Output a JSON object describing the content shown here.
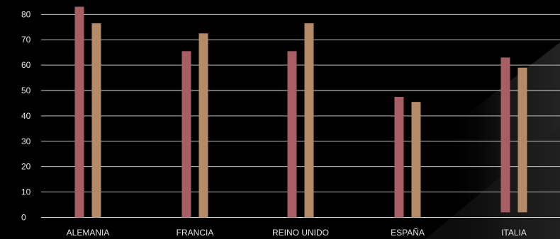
{
  "chart_data": {
    "type": "bar",
    "title": "",
    "xlabel": "",
    "ylabel": "",
    "ylim": [
      0,
      85
    ],
    "yticks": [
      0,
      10,
      20,
      30,
      40,
      50,
      60,
      70,
      80
    ],
    "grid": "horizontal",
    "categories": [
      "ALEMANIA",
      "FRANCIA",
      "REINO UNIDO",
      "ESPAÑA",
      "ITALIA"
    ],
    "series": [
      {
        "color": "#a85f63",
        "values": [
          83,
          65.5,
          65.5,
          47.5,
          63
        ]
      },
      {
        "color": "#b58b67",
        "values": [
          76.5,
          72.5,
          76.5,
          45.5,
          59
        ]
      }
    ],
    "series_baselines": [
      [
        0,
        0,
        0,
        0,
        2
      ],
      [
        0,
        0,
        0,
        0,
        2
      ]
    ]
  },
  "colors": {
    "background": "#000000",
    "gridline": "#d9d9d9",
    "text": "#e6e6e6"
  }
}
